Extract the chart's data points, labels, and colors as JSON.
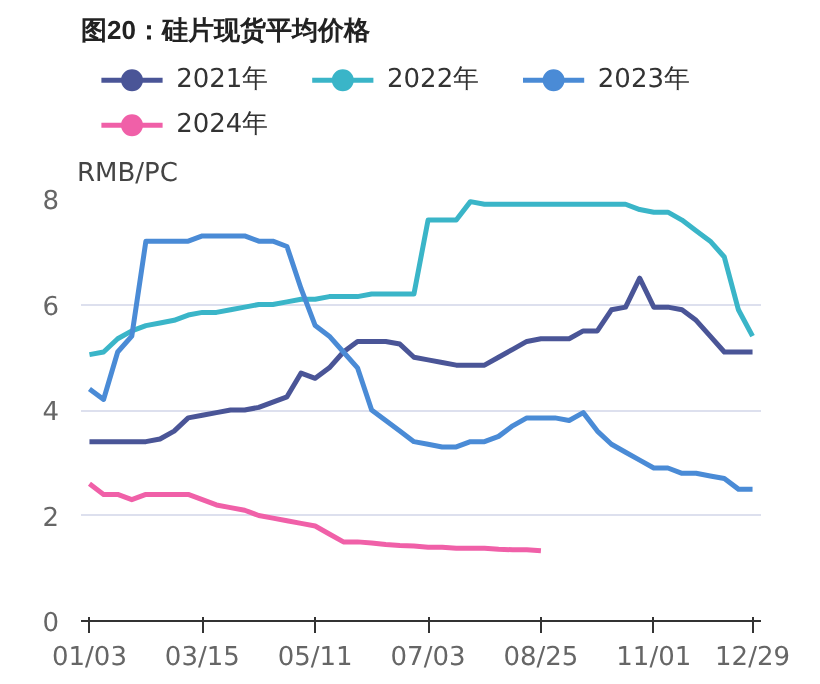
{
  "chart_data": {
    "type": "line",
    "title": "图20：硅片现货平均价格",
    "ylabel": "RMB/PC",
    "categories": [
      "01/03",
      null,
      null,
      null,
      null,
      null,
      null,
      null,
      "03/15",
      null,
      null,
      null,
      null,
      null,
      null,
      null,
      "05/11",
      null,
      null,
      null,
      null,
      null,
      null,
      null,
      "07/03",
      null,
      null,
      null,
      null,
      null,
      null,
      null,
      "08/25",
      null,
      null,
      null,
      null,
      null,
      null,
      null,
      "11/01",
      null,
      null,
      null,
      null,
      null,
      null,
      "12/29"
    ],
    "series": [
      {
        "name": "2021年",
        "color": "#4a5597",
        "values": [
          3.4,
          3.4,
          3.4,
          3.4,
          3.4,
          3.45,
          3.6,
          3.85,
          3.9,
          3.95,
          4.0,
          4.0,
          4.05,
          4.15,
          4.25,
          4.7,
          4.6,
          4.8,
          5.1,
          5.3,
          5.3,
          5.3,
          5.25,
          5.0,
          4.95,
          4.9,
          4.85,
          4.85,
          4.85,
          5.0,
          5.15,
          5.3,
          5.35,
          5.35,
          5.35,
          5.5,
          5.5,
          5.9,
          5.95,
          6.5,
          5.95,
          5.95,
          5.9,
          5.7,
          5.4,
          5.1,
          5.1,
          5.1
        ]
      },
      {
        "name": "2022年",
        "color": "#3ab5c8",
        "values": [
          5.05,
          5.1,
          5.35,
          5.5,
          5.6,
          5.65,
          5.7,
          5.8,
          5.85,
          5.85,
          5.9,
          5.95,
          6.0,
          6.0,
          6.05,
          6.1,
          6.1,
          6.15,
          6.15,
          6.15,
          6.2,
          6.2,
          6.2,
          6.2,
          7.6,
          7.6,
          7.6,
          7.95,
          7.9,
          7.9,
          7.9,
          7.9,
          7.9,
          7.9,
          7.9,
          7.9,
          7.9,
          7.9,
          7.9,
          7.8,
          7.75,
          7.75,
          7.6,
          7.4,
          7.2,
          6.9,
          5.9,
          5.4
        ]
      },
      {
        "name": "2023年",
        "color": "#4a8bd6",
        "values": [
          4.4,
          4.2,
          5.1,
          5.4,
          7.2,
          7.2,
          7.2,
          7.2,
          7.3,
          7.3,
          7.3,
          7.3,
          7.2,
          7.2,
          7.1,
          6.3,
          5.6,
          5.4,
          5.1,
          4.8,
          4.0,
          3.8,
          3.6,
          3.4,
          3.35,
          3.3,
          3.3,
          3.4,
          3.4,
          3.5,
          3.7,
          3.85,
          3.85,
          3.85,
          3.8,
          3.95,
          3.6,
          3.35,
          3.2,
          3.05,
          2.9,
          2.9,
          2.8,
          2.8,
          2.75,
          2.7,
          2.5,
          2.5
        ]
      },
      {
        "name": "2024年",
        "color": "#f060a8",
        "values": [
          2.6,
          2.4,
          2.4,
          2.3,
          2.4,
          2.4,
          2.4,
          2.4,
          2.3,
          2.2,
          2.15,
          2.1,
          2.0,
          1.95,
          1.9,
          1.85,
          1.8,
          1.65,
          1.5,
          1.5,
          1.48,
          1.45,
          1.43,
          1.42,
          1.4,
          1.4,
          1.38,
          1.38,
          1.38,
          1.36,
          1.35,
          1.35,
          1.33,
          null,
          null,
          null,
          null,
          null,
          null,
          null,
          null,
          null,
          null,
          null,
          null,
          null,
          null,
          null
        ]
      }
    ],
    "ylim": [
      0,
      8
    ],
    "yticks": [
      0,
      2,
      4,
      6,
      8
    ],
    "grid": "y",
    "legend": "top",
    "marker": "none",
    "line_style": "solid"
  }
}
